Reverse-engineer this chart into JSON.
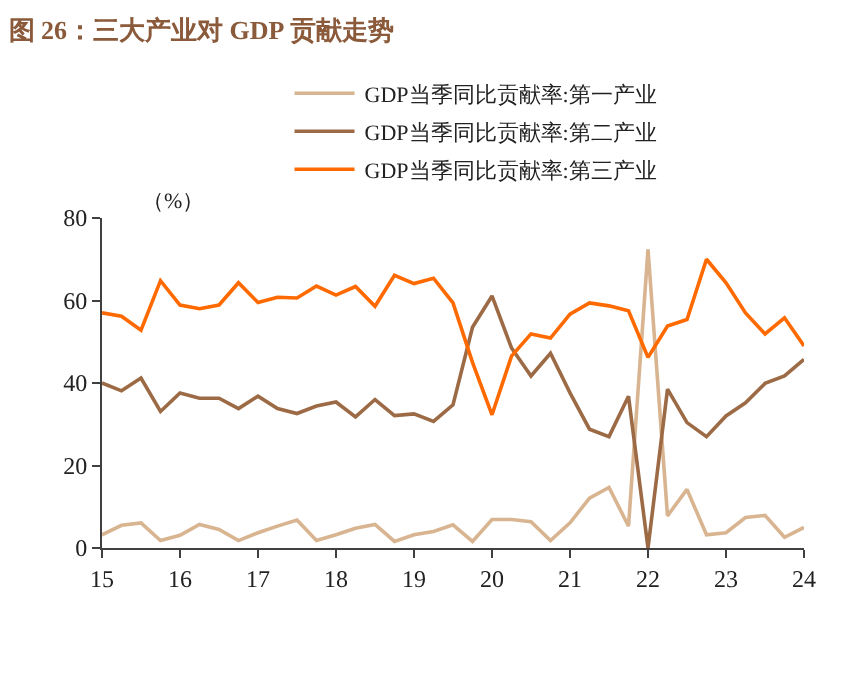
{
  "chart_data": {
    "type": "line",
    "title": "图 26：三大产业对 GDP 贡献走势",
    "x": [
      15,
      15.25,
      15.5,
      15.75,
      16,
      16.25,
      16.5,
      16.75,
      17,
      17.25,
      17.5,
      17.75,
      18,
      18.25,
      18.5,
      18.75,
      19,
      19.25,
      19.5,
      19.75,
      20,
      20.25,
      20.5,
      20.75,
      21,
      21.25,
      21.5,
      21.75,
      22,
      22.25,
      22.5,
      22.75,
      23,
      23.25,
      23.5,
      23.75,
      24
    ],
    "series": [
      {
        "name": "GDP当季同比贡献率:第一产业",
        "color": "#d8b590",
        "values": [
          3.2,
          5.5,
          6.1,
          1.8,
          3.1,
          5.7,
          4.5,
          1.8,
          3.7,
          5.3,
          6.8,
          1.8,
          3.2,
          4.8,
          5.7,
          1.6,
          3.2,
          4,
          5.6,
          1.6,
          6.9,
          6.9,
          6.4,
          1.8,
          6.1,
          12.1,
          14.7,
          5.3,
          72.4,
          7.8,
          14.2,
          3.2,
          3.7,
          7.4,
          7.9,
          2.6,
          5
        ]
      },
      {
        "name": "GDP当季同比贡献率:第二产业",
        "color": "#9c6b46",
        "values": [
          40,
          38.1,
          41.2,
          33.1,
          37.6,
          36.3,
          36.3,
          33.8,
          36.8,
          33.8,
          32.6,
          34.4,
          35.4,
          31.8,
          36,
          32.1,
          32.5,
          30.7,
          34.7,
          53.5,
          61.1,
          48.5,
          41.7,
          47.2,
          37.6,
          28.8,
          27,
          36.8,
          0,
          38.5,
          30.4,
          27,
          32,
          35.2,
          39.9,
          41.7,
          45.7
        ]
      },
      {
        "name": "GDP当季同比贡献率:第三产业",
        "color": "#ff6a00",
        "values": [
          57,
          56.2,
          52.8,
          64.8,
          58.9,
          58,
          58.9,
          64.3,
          59.5,
          60.8,
          60.6,
          63.5,
          61.3,
          63.4,
          58.6,
          66.1,
          64.1,
          65.4,
          59.4,
          45,
          32.3,
          46.5,
          51.9,
          50.9,
          56.7,
          59.4,
          58.7,
          57.5,
          46.2,
          53.8,
          55.4,
          70,
          64.3,
          57,
          51.9,
          55.8,
          49
        ]
      }
    ],
    "annotations": [
      "（%）"
    ],
    "xlim": [
      15,
      24
    ],
    "xticks": [
      15,
      16,
      17,
      18,
      19,
      20,
      21,
      22,
      23,
      24
    ],
    "ylim": [
      0,
      80
    ],
    "yticks": [
      0,
      20,
      40,
      60,
      80
    ],
    "legend": "top",
    "marker": "none",
    "line_style": "solid"
  }
}
